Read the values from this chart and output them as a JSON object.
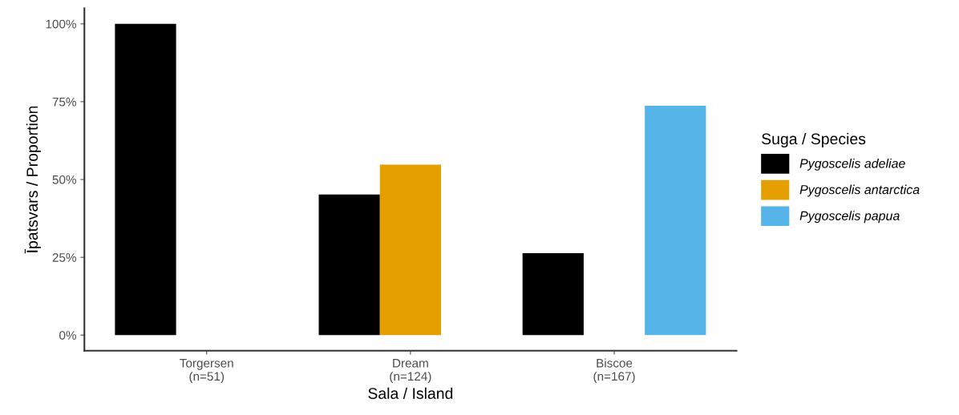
{
  "chart_data": {
    "type": "bar",
    "xlabel": "Sala / Island",
    "ylabel": "Īpatsvars / Proportion",
    "legend_title": "Suga / Species",
    "categories": [
      "Torgersen\n(n=51)",
      "Dream\n(n=124)",
      "Biscoe\n(n=167)"
    ],
    "series": [
      {
        "name": "Pygoscelis adeliae",
        "color": "#000000",
        "values": [
          100,
          45.2,
          26.3
        ]
      },
      {
        "name": "Pygoscelis antarctica",
        "color": "#e69f00",
        "values": [
          null,
          54.8,
          null
        ]
      },
      {
        "name": "Pygoscelis papua",
        "color": "#56b4e9",
        "values": [
          null,
          null,
          73.7
        ]
      }
    ],
    "ylim": [
      -5,
      105
    ],
    "yticks": [
      {
        "value": 0,
        "label": "0%"
      },
      {
        "value": 25,
        "label": "25%"
      },
      {
        "value": 50,
        "label": "50%"
      },
      {
        "value": 75,
        "label": "75%"
      },
      {
        "value": 100,
        "label": "100%"
      }
    ],
    "grid": false,
    "legend": "right"
  }
}
